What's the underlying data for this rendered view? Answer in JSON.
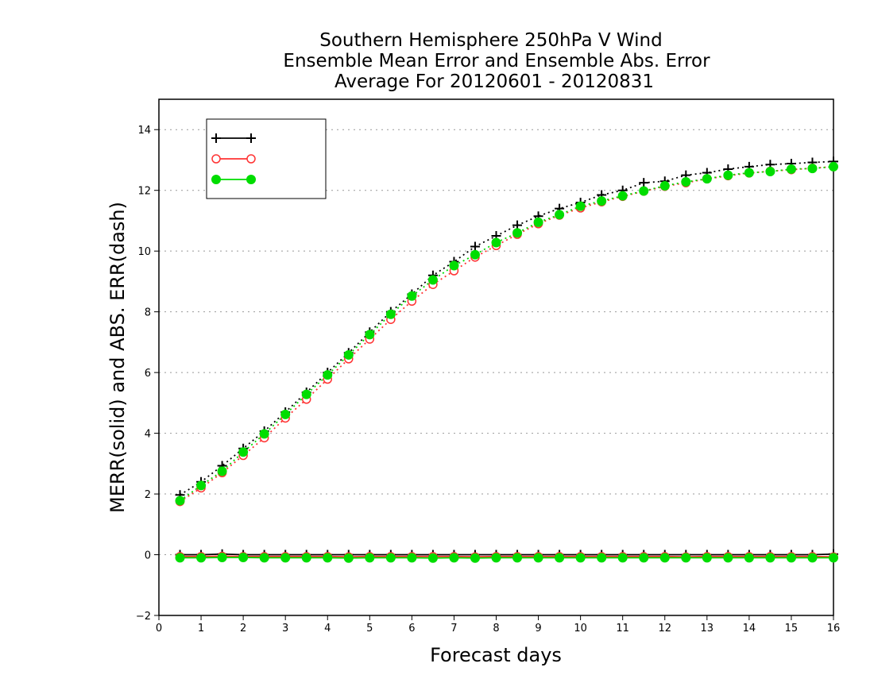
{
  "chart_data": {
    "type": "line",
    "title_lines": [
      "Southern Hemisphere 250hPa V Wind",
      "Ensemble Mean Error and Ensemble Abs. Error",
      "Average For 20120601 - 20120831"
    ],
    "xlabel": "Forecast days",
    "ylabel": "MERR(solid) and ABS. ERR(dash)",
    "xlim": [
      0,
      16
    ],
    "ylim": [
      -2,
      15
    ],
    "xticks": [
      0,
      1,
      2,
      3,
      4,
      5,
      6,
      7,
      8,
      9,
      10,
      11,
      12,
      13,
      14,
      15,
      16
    ],
    "yticks": [
      -2,
      0,
      2,
      4,
      6,
      8,
      10,
      12,
      14
    ],
    "grid": "horizontal dotted",
    "legend_position": "top-left",
    "x": [
      0.5,
      1,
      1.5,
      2,
      2.5,
      3,
      3.5,
      4,
      4.5,
      5,
      5.5,
      6,
      6.5,
      7,
      7.5,
      8,
      8.5,
      9,
      9.5,
      10,
      10.5,
      11,
      11.5,
      12,
      12.5,
      13,
      13.5,
      14,
      14.5,
      15,
      15.5,
      16
    ],
    "series": [
      {
        "legend_text": "",
        "color": "#000000",
        "marker": "plus",
        "abs_err": [
          1.97,
          2.4,
          2.93,
          3.5,
          4.07,
          4.7,
          5.35,
          6.0,
          6.65,
          7.33,
          8.0,
          8.58,
          9.2,
          9.65,
          10.15,
          10.5,
          10.85,
          11.15,
          11.4,
          11.6,
          11.85,
          12.0,
          12.25,
          12.3,
          12.5,
          12.58,
          12.7,
          12.78,
          12.85,
          12.88,
          12.92,
          12.95
        ],
        "mean_err": [
          0.0,
          0.0,
          0.02,
          0.0,
          0.0,
          0.0,
          0.0,
          0.0,
          0.0,
          0.0,
          0.0,
          0.0,
          0.0,
          0.0,
          0.0,
          0.0,
          0.0,
          0.0,
          0.0,
          0.0,
          0.0,
          0.0,
          0.0,
          0.0,
          0.0,
          0.0,
          0.0,
          0.0,
          0.0,
          0.0,
          0.0,
          0.02
        ]
      },
      {
        "legend_text": "",
        "color": "#ff3333",
        "marker": "open-circle",
        "abs_err": [
          1.75,
          2.2,
          2.7,
          3.27,
          3.85,
          4.5,
          5.12,
          5.78,
          6.45,
          7.1,
          7.75,
          8.35,
          8.9,
          9.35,
          9.8,
          10.18,
          10.55,
          10.9,
          11.18,
          11.42,
          11.62,
          11.8,
          11.97,
          12.13,
          12.25,
          12.38,
          12.48,
          12.57,
          12.63,
          12.68,
          12.73,
          12.78
        ],
        "mean_err": [
          -0.06,
          -0.06,
          -0.05,
          -0.06,
          -0.06,
          -0.06,
          -0.06,
          -0.06,
          -0.07,
          -0.06,
          -0.06,
          -0.06,
          -0.06,
          -0.06,
          -0.07,
          -0.06,
          -0.06,
          -0.06,
          -0.06,
          -0.06,
          -0.06,
          -0.06,
          -0.06,
          -0.06,
          -0.07,
          -0.06,
          -0.06,
          -0.06,
          -0.06,
          -0.06,
          -0.06,
          -0.07
        ]
      },
      {
        "legend_text": "",
        "color": "#00dd00",
        "marker": "filled-circle",
        "abs_err": [
          1.78,
          2.28,
          2.75,
          3.38,
          3.98,
          4.62,
          5.28,
          5.92,
          6.58,
          7.25,
          7.92,
          8.52,
          9.05,
          9.52,
          9.88,
          10.28,
          10.6,
          10.95,
          11.2,
          11.48,
          11.65,
          11.82,
          11.98,
          12.15,
          12.28,
          12.38,
          12.5,
          12.58,
          12.62,
          12.7,
          12.72,
          12.78
        ],
        "mean_err": [
          -0.1,
          -0.1,
          -0.09,
          -0.09,
          -0.1,
          -0.1,
          -0.1,
          -0.1,
          -0.11,
          -0.1,
          -0.1,
          -0.1,
          -0.11,
          -0.1,
          -0.11,
          -0.1,
          -0.1,
          -0.1,
          -0.1,
          -0.1,
          -0.1,
          -0.1,
          -0.1,
          -0.1,
          -0.1,
          -0.1,
          -0.1,
          -0.1,
          -0.1,
          -0.1,
          -0.1,
          -0.1
        ]
      }
    ]
  }
}
